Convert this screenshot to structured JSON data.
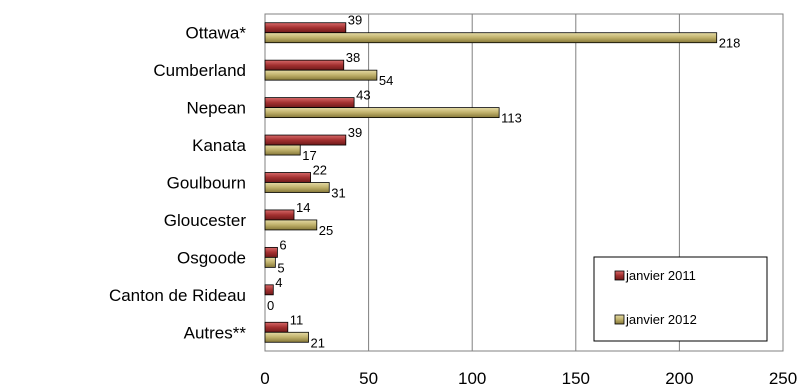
{
  "chart_data": {
    "type": "bar",
    "orientation": "horizontal",
    "categories": [
      "Ottawa*",
      "Cumberland",
      "Nepean",
      "Kanata",
      "Goulbourn",
      "Gloucester",
      "Osgoode",
      "Canton de Rideau",
      "Autres**"
    ],
    "series": [
      {
        "name": "janvier 2011",
        "color": "#a33030",
        "values": [
          39,
          38,
          43,
          39,
          22,
          14,
          6,
          4,
          11
        ]
      },
      {
        "name": "janvier 2012",
        "color": "#bfb06a",
        "values": [
          218,
          54,
          113,
          17,
          31,
          25,
          5,
          0,
          21
        ]
      }
    ],
    "xlim": [
      0,
      250
    ],
    "xticks": [
      0,
      50,
      100,
      150,
      200,
      250
    ],
    "grid": true,
    "legend": "bottom-right",
    "title": "",
    "xlabel": "",
    "ylabel": ""
  }
}
